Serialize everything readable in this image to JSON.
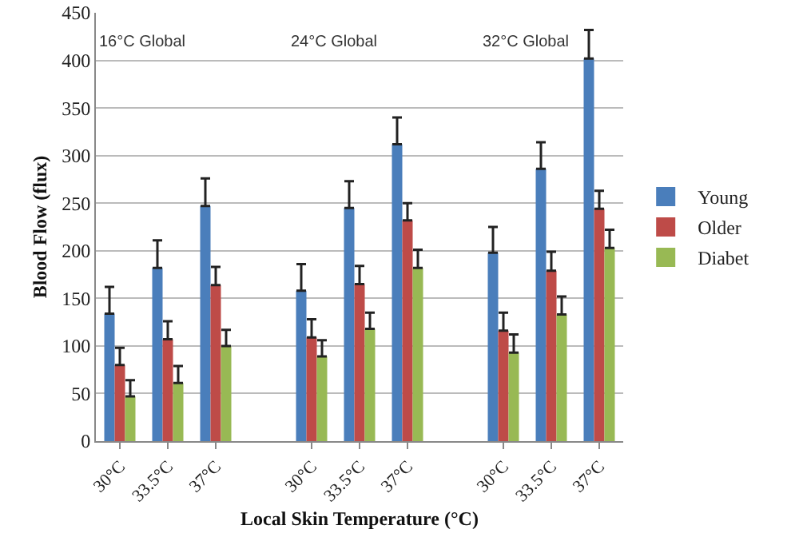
{
  "chart_data": {
    "type": "bar",
    "xlabel": "Local Skin Temperature (°C)",
    "ylabel": "Blood Flow (flux)",
    "categories": [
      "30°C",
      "33.5°C",
      "37°C",
      null,
      "30°C",
      "33.5°C",
      "37°C",
      null,
      "30°C",
      "33.5°C",
      "37°C"
    ],
    "series": [
      {
        "name": "Young",
        "color": "#4a7ebb",
        "values": [
          134,
          182,
          247,
          null,
          158,
          245,
          312,
          null,
          198,
          286,
          402
        ],
        "errors": [
          [
            134,
            162
          ],
          [
            182,
            211
          ],
          [
            247,
            276
          ],
          null,
          [
            158,
            186
          ],
          [
            245,
            273
          ],
          [
            312,
            340
          ],
          null,
          [
            198,
            225
          ],
          [
            286,
            314
          ],
          [
            402,
            432
          ]
        ]
      },
      {
        "name": "Older",
        "color": "#be4b48",
        "values": [
          80,
          107,
          164,
          null,
          109,
          165,
          232,
          null,
          116,
          179,
          244
        ],
        "errors": [
          [
            80,
            98
          ],
          [
            107,
            126
          ],
          [
            164,
            183
          ],
          null,
          [
            109,
            128
          ],
          [
            165,
            184
          ],
          [
            232,
            250
          ],
          null,
          [
            116,
            135
          ],
          [
            179,
            199
          ],
          [
            244,
            263
          ]
        ]
      },
      {
        "name": "Diabet",
        "color": "#98b954",
        "values": [
          47,
          61,
          100,
          null,
          89,
          118,
          182,
          null,
          93,
          133,
          203
        ],
        "errors": [
          [
            47,
            64
          ],
          [
            61,
            79
          ],
          [
            100,
            117
          ],
          null,
          [
            89,
            106
          ],
          [
            118,
            135
          ],
          [
            182,
            201
          ],
          null,
          [
            93,
            112
          ],
          [
            133,
            152
          ],
          [
            203,
            222
          ]
        ]
      }
    ],
    "annotations": [
      "16°C Global",
      "24°C Global",
      "32°C Global"
    ],
    "ylim": [
      0,
      450
    ],
    "yticks": [
      0,
      50,
      100,
      150,
      200,
      250,
      300,
      350,
      400,
      450
    ],
    "grid": "y",
    "legend": "right"
  }
}
